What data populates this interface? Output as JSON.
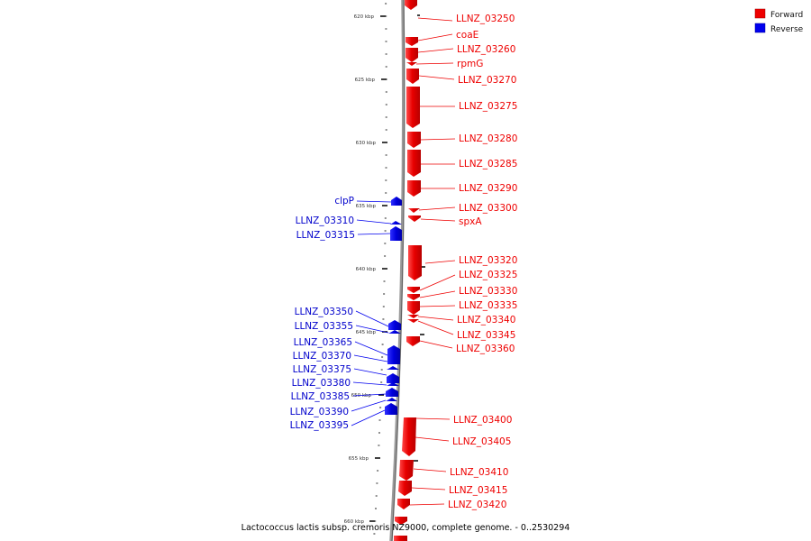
{
  "legend": [
    {
      "label": "Forward",
      "color": "#ee0000"
    },
    {
      "label": "Reverse",
      "color": "#0000ee"
    }
  ],
  "caption": "Lactococcus lactis subsp. cremoris NZ9000, complete genome. - 0..2530294",
  "ticks": [
    "620 kbp",
    "625 kbp",
    "630 kbp",
    "635 kbp",
    "640 kbp",
    "645 kbp",
    "650 kbp",
    "655 kbp",
    "660 kbp"
  ],
  "forward_genes": [
    "LLNZ_03250",
    "coaE",
    "LLNZ_03260",
    "rpmG",
    "LLNZ_03270",
    "LLNZ_03275",
    "LLNZ_03280",
    "LLNZ_03285",
    "LLNZ_03290",
    "LLNZ_03300",
    "spxA",
    "LLNZ_03320",
    "LLNZ_03325",
    "LLNZ_03330",
    "LLNZ_03335",
    "LLNZ_03340",
    "LLNZ_03345",
    "LLNZ_03360",
    "LLNZ_03400",
    "LLNZ_03405",
    "LLNZ_03410",
    "LLNZ_03415",
    "LLNZ_03420"
  ],
  "reverse_genes": [
    "clpP",
    "LLNZ_03310",
    "LLNZ_03315",
    "LLNZ_03350",
    "LLNZ_03355",
    "LLNZ_03365",
    "LLNZ_03370",
    "LLNZ_03375",
    "LLNZ_03380",
    "LLNZ_03385",
    "LLNZ_03390",
    "LLNZ_03395"
  ]
}
